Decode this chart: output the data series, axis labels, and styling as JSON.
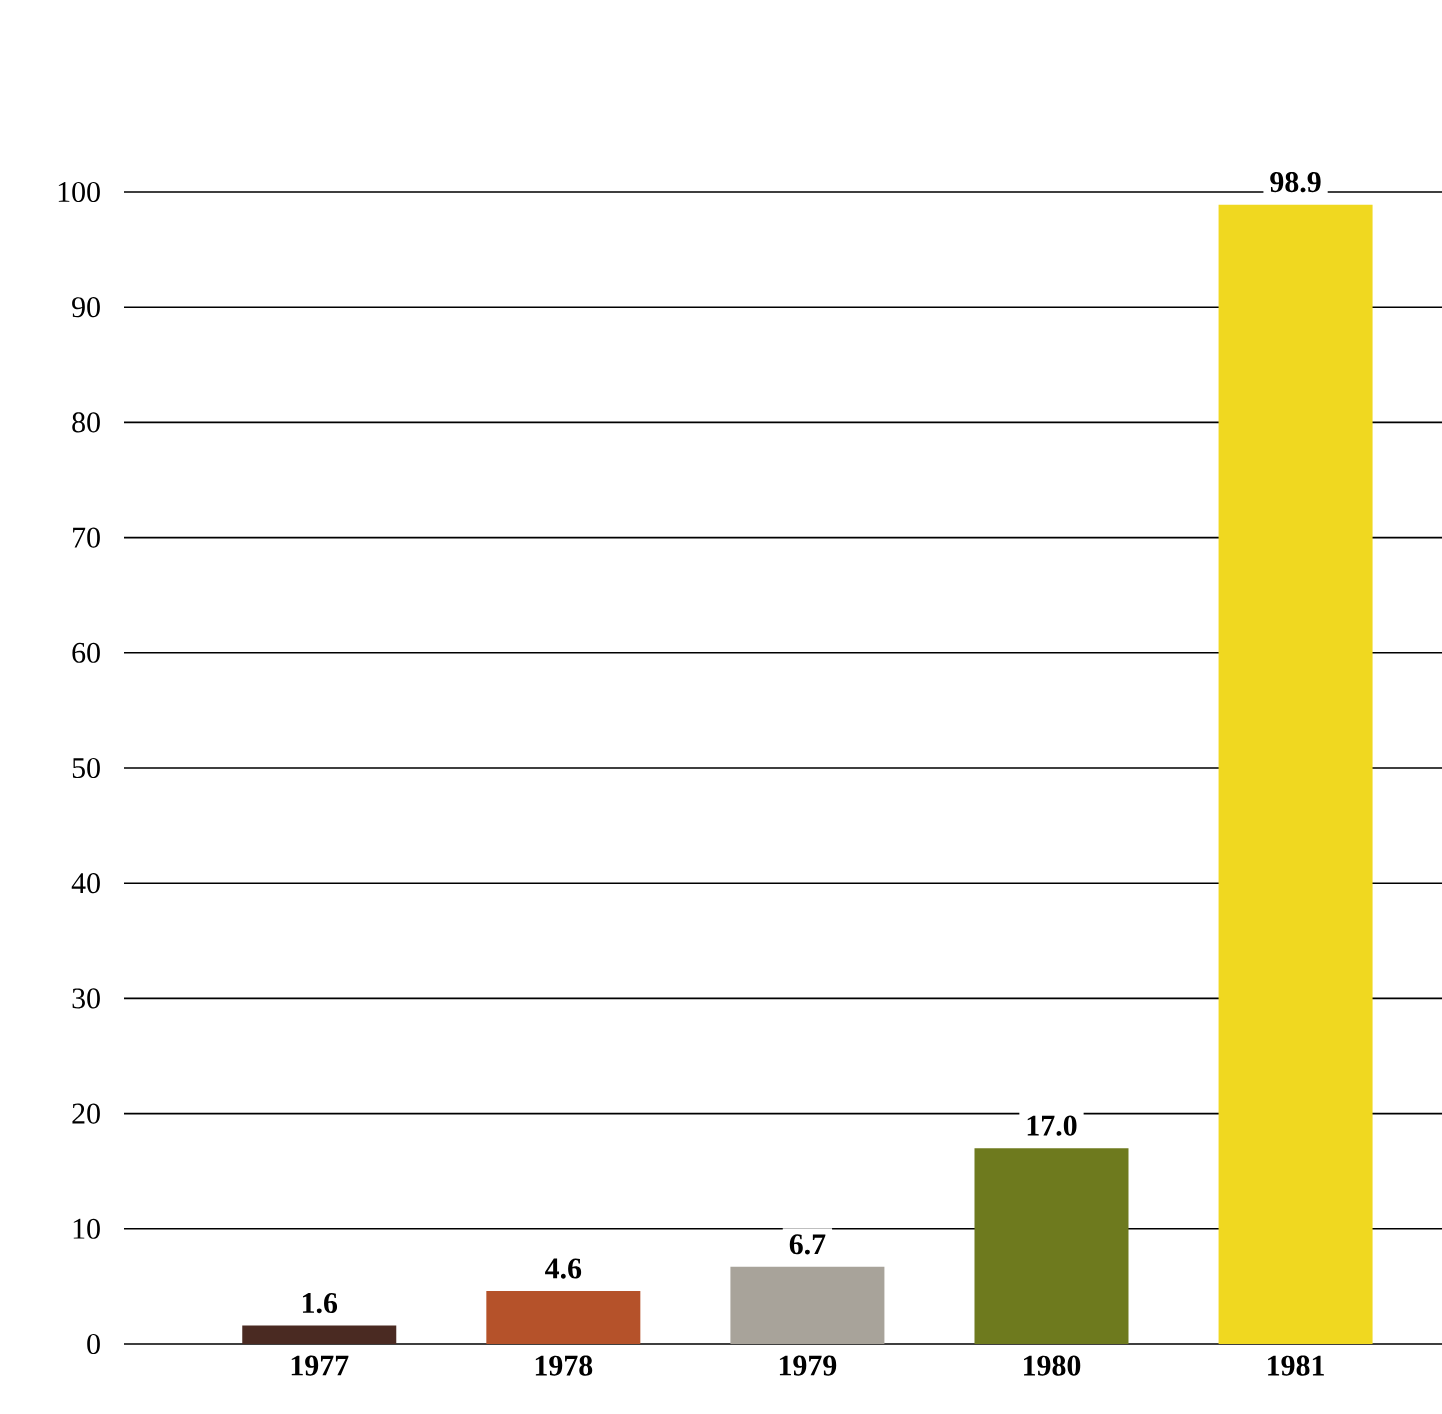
{
  "chart_data": {
    "type": "bar",
    "categories": [
      "1977",
      "1978",
      "1979",
      "1980",
      "1981"
    ],
    "values": [
      1.6,
      4.6,
      6.7,
      17.0,
      98.9
    ],
    "value_labels": [
      "1.6",
      "4.6",
      "6.7",
      "17.0",
      "98.9"
    ],
    "colors": [
      "#4a2a22",
      "#b5522a",
      "#a8a39a",
      "#6e7a1e",
      "#f0d820"
    ],
    "ylim": [
      0,
      100
    ],
    "yticks": [
      0,
      10,
      20,
      30,
      40,
      50,
      60,
      70,
      80,
      90,
      100
    ],
    "grid": "y"
  }
}
